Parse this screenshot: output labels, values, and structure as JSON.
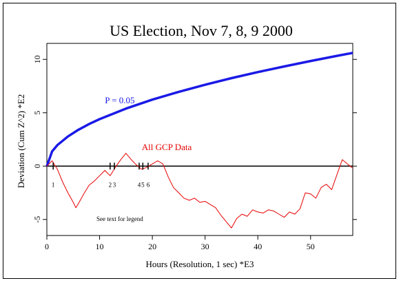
{
  "chart_data": {
    "type": "line",
    "title": "US Election, Nov 7, 8, 9 2000",
    "xlabel": "Hours (Resolution, 1 sec)   *E3",
    "ylabel": "Deviation (Cum Z^2)  *E2",
    "xlim": [
      0,
      58
    ],
    "ylim": [
      -6.5,
      11.5
    ],
    "x_ticks": [
      0,
      10,
      20,
      30,
      40,
      50
    ],
    "y_ticks": [
      -5,
      0,
      5,
      10
    ],
    "grid": false,
    "legend_note": "See text for legend",
    "colors": {
      "p05": "#1a1ae6",
      "gcp": "#e60000",
      "zero": "#000000"
    },
    "series": [
      {
        "name": "P = 0.05",
        "x": [
          0,
          1,
          2,
          4,
          6,
          8,
          10,
          15,
          20,
          25,
          30,
          35,
          40,
          45,
          50,
          55,
          58
        ],
        "y": [
          0,
          1.39,
          1.97,
          2.78,
          3.41,
          3.94,
          4.4,
          5.39,
          6.23,
          6.96,
          7.62,
          8.24,
          8.81,
          9.34,
          9.85,
          10.33,
          10.61
        ]
      },
      {
        "name": "All GCP Data",
        "x": [
          0,
          1,
          2,
          3,
          4,
          5,
          5.5,
          6,
          7,
          8,
          9,
          10,
          11,
          12,
          13,
          14,
          15,
          16,
          17,
          18,
          19,
          20,
          21,
          22,
          23,
          24,
          25,
          26,
          27,
          28,
          29,
          30,
          31,
          32,
          33,
          34,
          35,
          36,
          37,
          38,
          39,
          40,
          41,
          42,
          43,
          44,
          45,
          46,
          47,
          48,
          49,
          50,
          51,
          52,
          53,
          54,
          55,
          56,
          57,
          58
        ],
        "y": [
          0,
          0.5,
          -0.3,
          -1.5,
          -2.5,
          -3.4,
          -3.9,
          -3.5,
          -2.6,
          -1.8,
          -1.4,
          -0.9,
          -0.4,
          -0.9,
          -0.1,
          0.6,
          1.2,
          0.6,
          0.1,
          -0.3,
          -0.1,
          0.2,
          0.5,
          0.2,
          -1.0,
          -2.0,
          -2.5,
          -3.0,
          -3.2,
          -3.0,
          -3.4,
          -3.3,
          -3.6,
          -3.9,
          -4.6,
          -5.2,
          -5.8,
          -4.9,
          -4.5,
          -4.7,
          -4.1,
          -4.3,
          -4.4,
          -4.1,
          -4.2,
          -4.5,
          -4.8,
          -4.3,
          -4.5,
          -4.0,
          -2.5,
          -2.6,
          -3.0,
          -2.0,
          -1.7,
          -2.2,
          -0.8,
          0.6,
          0.2,
          -0.2
        ]
      }
    ],
    "event_markers": [
      {
        "x": 1.2,
        "label": "1"
      },
      {
        "x": 12.0,
        "label": "2"
      },
      {
        "x": 12.8,
        "label": "3"
      },
      {
        "x": 17.5,
        "label": "4"
      },
      {
        "x": 18.2,
        "label": "5"
      },
      {
        "x": 19.2,
        "label": "6"
      }
    ],
    "annotations": [
      {
        "text": "P = 0.05",
        "x": 11.0,
        "y": 5.9
      },
      {
        "text": "All GCP Data",
        "x": 18.0,
        "y": 1.5
      }
    ]
  }
}
